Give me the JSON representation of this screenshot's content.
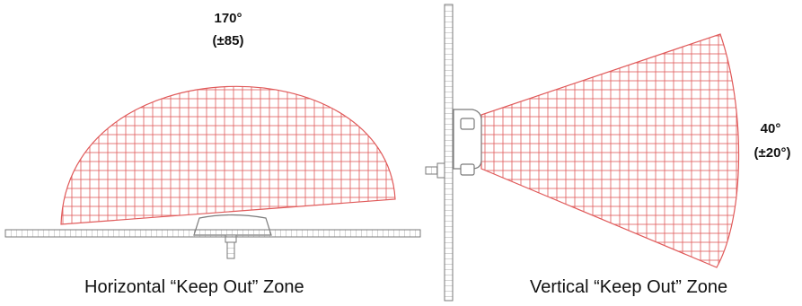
{
  "horizontal": {
    "angle": "170°",
    "tolerance": "(±85)",
    "caption": "Horizontal “Keep Out” Zone"
  },
  "vertical": {
    "angle": "40°",
    "tolerance": "(±20°)",
    "caption": "Vertical “Keep Out” Zone"
  },
  "colors": {
    "zone": "#e05a5a",
    "structure": "#7a7a7a"
  }
}
